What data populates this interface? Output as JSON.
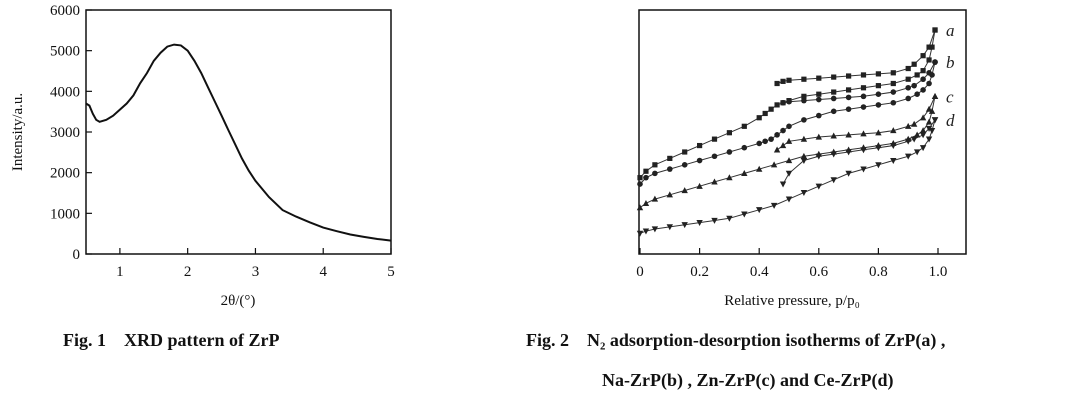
{
  "chart_data": [
    {
      "type": "line",
      "title": "",
      "xlabel": "2θ/(°)",
      "ylabel": "Intensity/a.u.",
      "xlim": [
        0.5,
        5
      ],
      "ylim": [
        0,
        6000
      ],
      "xticks": [
        1,
        2,
        3,
        4,
        5
      ],
      "yticks": [
        0,
        1000,
        2000,
        3000,
        4000,
        5000,
        6000
      ],
      "series": [
        {
          "x": [
            0.5,
            0.55,
            0.6,
            0.65,
            0.7,
            0.8,
            0.9,
            1.0,
            1.1,
            1.2,
            1.3,
            1.4,
            1.5,
            1.6,
            1.7,
            1.8,
            1.9,
            2.0,
            2.1,
            2.2,
            2.3,
            2.4,
            2.5,
            2.6,
            2.7,
            2.8,
            2.9,
            3.0,
            3.2,
            3.4,
            3.6,
            3.8,
            4.0,
            4.2,
            4.4,
            4.6,
            4.8,
            5.0
          ],
          "y": [
            3700,
            3650,
            3450,
            3300,
            3250,
            3300,
            3400,
            3550,
            3700,
            3900,
            4200,
            4450,
            4750,
            4950,
            5100,
            5150,
            5130,
            5000,
            4750,
            4450,
            4100,
            3750,
            3400,
            3050,
            2700,
            2350,
            2050,
            1800,
            1400,
            1080,
            920,
            780,
            650,
            560,
            480,
            420,
            370,
            330
          ]
        }
      ]
    },
    {
      "type": "line",
      "title": "",
      "xlabel": "Relative pressure, p/p₀",
      "ylabel": "",
      "xlim": [
        0,
        1.0
      ],
      "ylim": [
        0,
        1
      ],
      "xticks": [
        "0",
        "0.2",
        "0.4",
        "0.6",
        "0.8",
        "1.0"
      ],
      "series": [
        {
          "name": "a",
          "marker": "square",
          "adsorption": {
            "x": [
              0.0,
              0.02,
              0.05,
              0.1,
              0.15,
              0.2,
              0.25,
              0.3,
              0.35,
              0.4,
              0.42,
              0.44,
              0.46,
              0.48,
              0.5,
              0.55,
              0.6,
              0.65,
              0.7,
              0.75,
              0.8,
              0.85,
              0.9,
              0.93,
              0.95,
              0.97,
              0.98,
              0.99
            ],
            "y": [
              0.31,
              0.34,
              0.37,
              0.4,
              0.43,
              0.46,
              0.49,
              0.52,
              0.55,
              0.59,
              0.61,
              0.63,
              0.65,
              0.66,
              0.67,
              0.69,
              0.7,
              0.71,
              0.72,
              0.73,
              0.74,
              0.75,
              0.77,
              0.79,
              0.81,
              0.86,
              0.92,
              1.0
            ]
          },
          "desorption": {
            "x": [
              0.99,
              0.97,
              0.95,
              0.92,
              0.9,
              0.85,
              0.8,
              0.75,
              0.7,
              0.65,
              0.6,
              0.55,
              0.5,
              0.48,
              0.46
            ],
            "y": [
              1.0,
              0.92,
              0.88,
              0.84,
              0.82,
              0.8,
              0.795,
              0.79,
              0.785,
              0.78,
              0.775,
              0.77,
              0.765,
              0.76,
              0.75
            ]
          }
        },
        {
          "name": "b",
          "marker": "circle",
          "adsorption": {
            "x": [
              0.0,
              0.02,
              0.05,
              0.1,
              0.15,
              0.2,
              0.25,
              0.3,
              0.35,
              0.4,
              0.42,
              0.44,
              0.46,
              0.48,
              0.5,
              0.55,
              0.6,
              0.65,
              0.7,
              0.75,
              0.8,
              0.85,
              0.9,
              0.93,
              0.95,
              0.97,
              0.98,
              0.99
            ],
            "y": [
              0.28,
              0.31,
              0.33,
              0.35,
              0.37,
              0.39,
              0.41,
              0.43,
              0.45,
              0.47,
              0.48,
              0.49,
              0.51,
              0.53,
              0.55,
              0.58,
              0.6,
              0.62,
              0.63,
              0.64,
              0.65,
              0.66,
              0.68,
              0.7,
              0.72,
              0.75,
              0.79,
              0.85
            ]
          },
          "desorption": {
            "x": [
              0.99,
              0.97,
              0.95,
              0.92,
              0.9,
              0.85,
              0.8,
              0.75,
              0.7,
              0.65,
              0.6,
              0.55,
              0.5,
              0.48
            ],
            "y": [
              0.85,
              0.8,
              0.77,
              0.74,
              0.73,
              0.71,
              0.7,
              0.69,
              0.685,
              0.68,
              0.675,
              0.67,
              0.665,
              0.66
            ]
          }
        },
        {
          "name": "c",
          "marker": "triangle-up",
          "adsorption": {
            "x": [
              0.0,
              0.02,
              0.05,
              0.1,
              0.15,
              0.2,
              0.25,
              0.3,
              0.35,
              0.4,
              0.45,
              0.5,
              0.55,
              0.6,
              0.65,
              0.7,
              0.75,
              0.8,
              0.85,
              0.9,
              0.93,
              0.95,
              0.97,
              0.98,
              0.99
            ],
            "y": [
              0.17,
              0.19,
              0.21,
              0.23,
              0.25,
              0.27,
              0.29,
              0.31,
              0.33,
              0.35,
              0.37,
              0.39,
              0.41,
              0.42,
              0.43,
              0.44,
              0.45,
              0.46,
              0.47,
              0.49,
              0.51,
              0.53,
              0.57,
              0.62,
              0.69
            ]
          },
          "desorption": {
            "x": [
              0.99,
              0.97,
              0.95,
              0.92,
              0.9,
              0.85,
              0.8,
              0.75,
              0.7,
              0.65,
              0.6,
              0.55,
              0.5,
              0.48,
              0.46
            ],
            "y": [
              0.69,
              0.63,
              0.59,
              0.56,
              0.55,
              0.53,
              0.52,
              0.515,
              0.51,
              0.505,
              0.5,
              0.49,
              0.48,
              0.46,
              0.44
            ]
          }
        },
        {
          "name": "d",
          "marker": "triangle-down",
          "adsorption": {
            "x": [
              0.0,
              0.02,
              0.05,
              0.1,
              0.15,
              0.2,
              0.25,
              0.3,
              0.35,
              0.4,
              0.45,
              0.5,
              0.55,
              0.6,
              0.65,
              0.7,
              0.75,
              0.8,
              0.85,
              0.9,
              0.93,
              0.95,
              0.97,
              0.98,
              0.99
            ],
            "y": [
              0.05,
              0.06,
              0.07,
              0.08,
              0.09,
              0.1,
              0.11,
              0.12,
              0.14,
              0.16,
              0.18,
              0.21,
              0.24,
              0.27,
              0.3,
              0.33,
              0.35,
              0.37,
              0.39,
              0.41,
              0.43,
              0.45,
              0.49,
              0.53,
              0.58
            ]
          },
          "desorption": {
            "x": [
              0.99,
              0.97,
              0.95,
              0.92,
              0.9,
              0.85,
              0.8,
              0.75,
              0.7,
              0.65,
              0.6,
              0.55,
              0.5,
              0.48
            ],
            "y": [
              0.58,
              0.54,
              0.51,
              0.49,
              0.48,
              0.46,
              0.45,
              0.44,
              0.43,
              0.42,
              0.41,
              0.39,
              0.33,
              0.28
            ]
          }
        }
      ]
    }
  ],
  "captions": {
    "fig1_num": "Fig. 1",
    "fig1_text": "XRD pattern of ZrP",
    "fig2_num": "Fig. 2",
    "fig2_line1": "N₂ adsorption-desorption isotherms of ZrP(a) ,",
    "fig2_line2": "Na-ZrP(b) , Zn-ZrP(c) and Ce-ZrP(d)"
  }
}
